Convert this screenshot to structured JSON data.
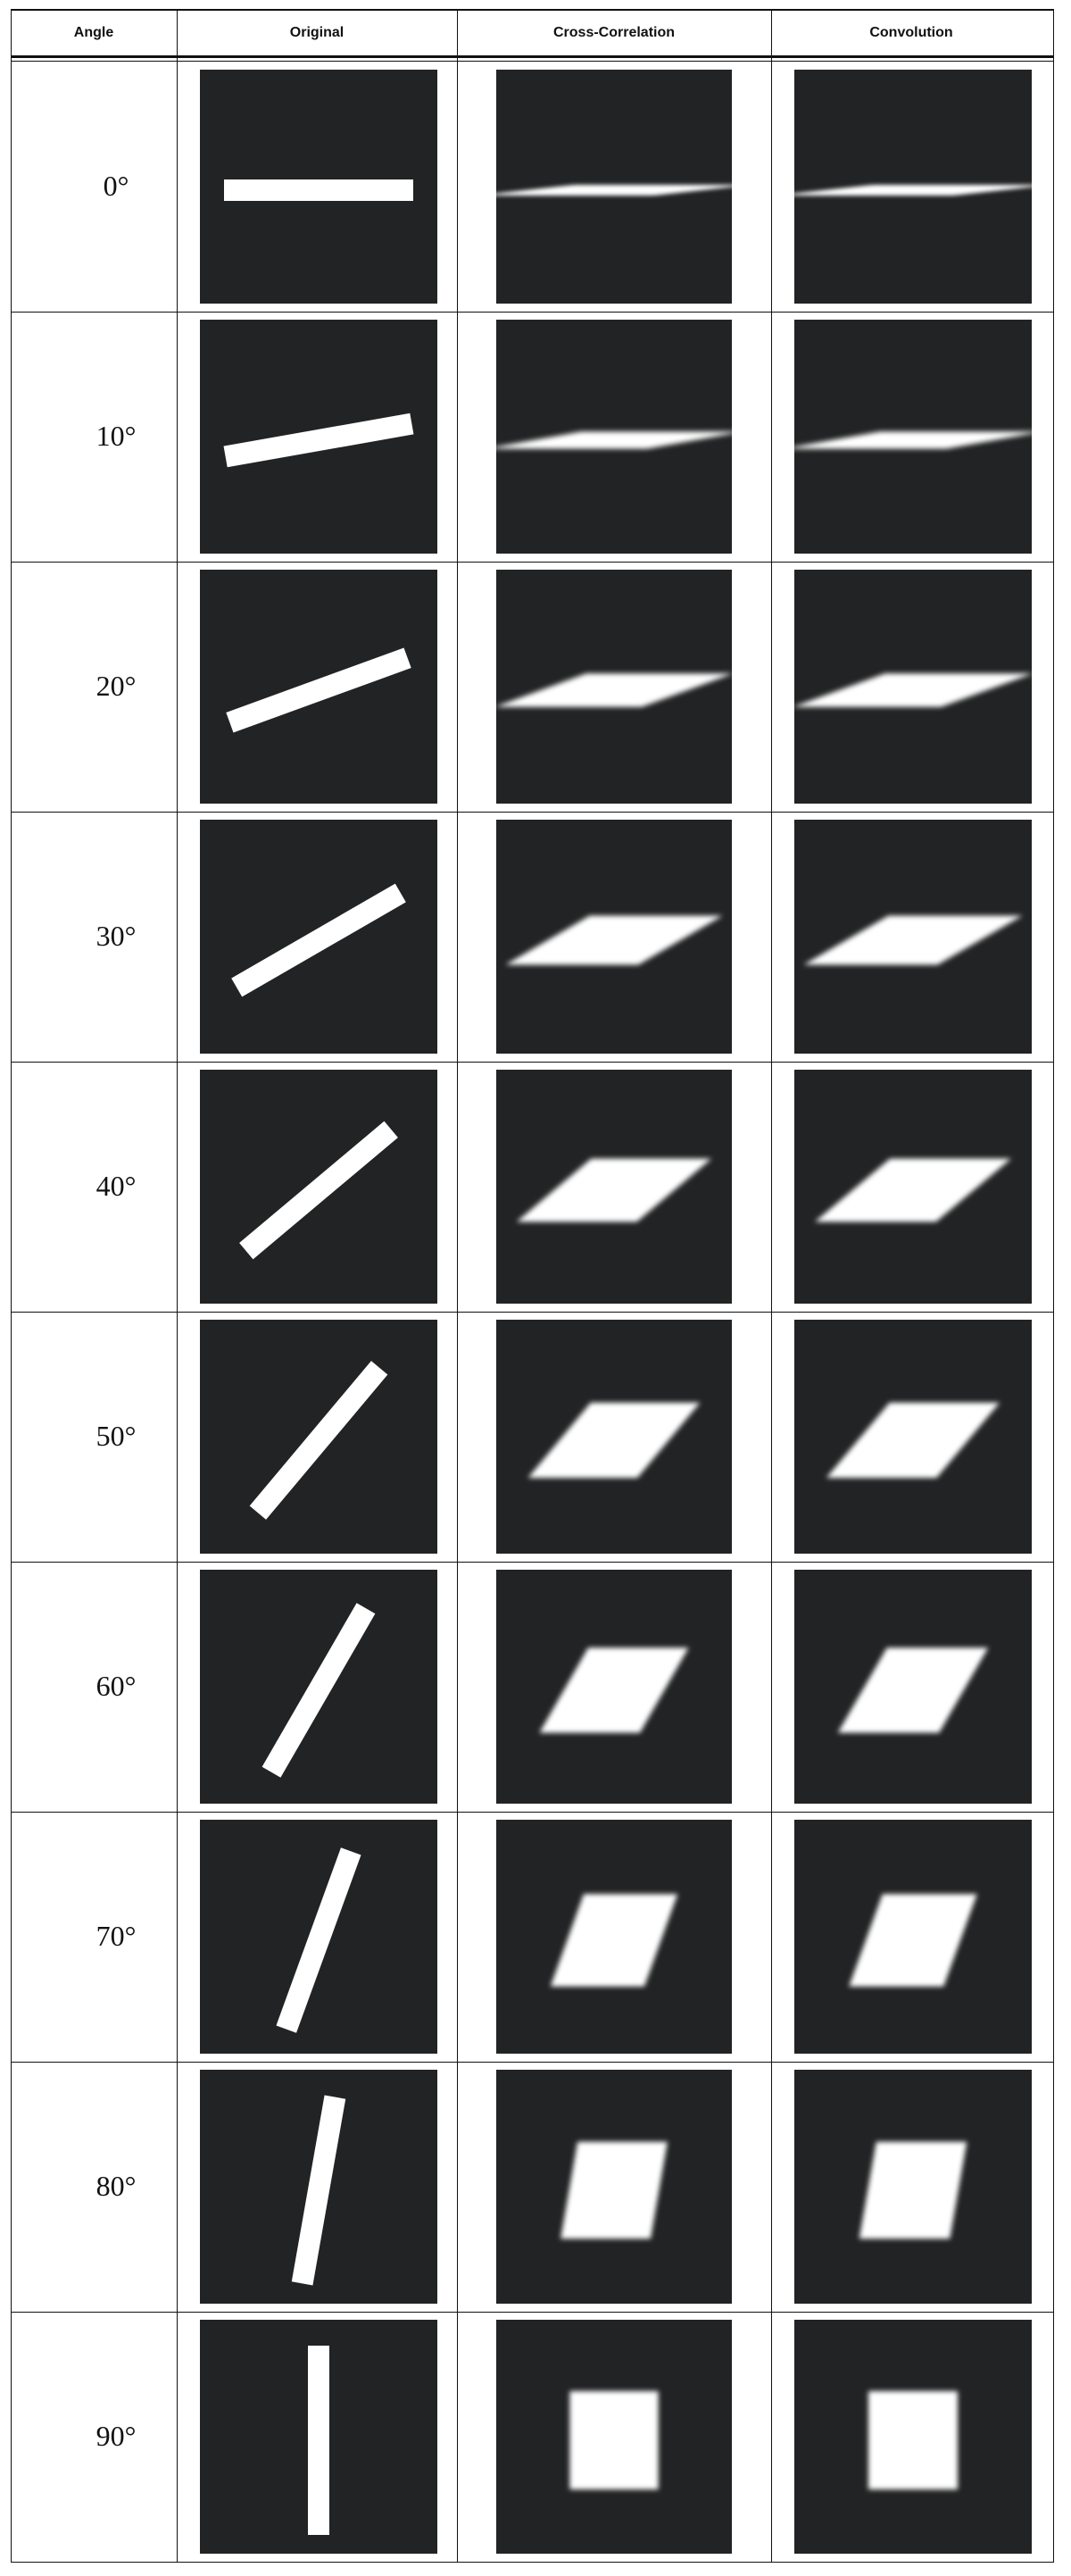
{
  "table": {
    "headers": [
      "Angle",
      "Original",
      "Cross-Correlation",
      "Convolution"
    ],
    "rows": [
      {
        "angle": "0°",
        "angle_deg": 0
      },
      {
        "angle": "10°",
        "angle_deg": 10
      },
      {
        "angle": "20°",
        "angle_deg": 20
      },
      {
        "angle": "30°",
        "angle_deg": 30
      },
      {
        "angle": "40°",
        "angle_deg": 40
      },
      {
        "angle": "50°",
        "angle_deg": 50
      },
      {
        "angle": "60°",
        "angle_deg": 60
      },
      {
        "angle": "70°",
        "angle_deg": 70
      },
      {
        "angle": "80°",
        "angle_deg": 80
      },
      {
        "angle": "90°",
        "angle_deg": 90
      }
    ]
  },
  "colors": {
    "panel_background": "#222324",
    "shape_fill": "#ffffff",
    "grid_line": "#111111"
  }
}
